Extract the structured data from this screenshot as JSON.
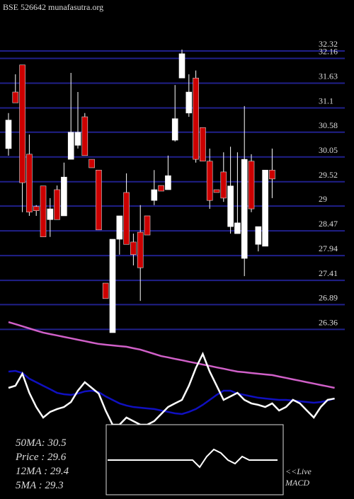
{
  "chart_data": {
    "type": "candlestick",
    "title": "BSE 526642 munafasutra.org",
    "ylim": [
      26.29,
      33.41
    ],
    "yticks": [
      32.32,
      32.16,
      31.63,
      31.1,
      30.58,
      30.05,
      29.52,
      29,
      28.47,
      27.94,
      27.41,
      26.89,
      26.36
    ],
    "grid_color": "#20208a",
    "up_color": "#ffffff",
    "down_color": "#cc0000",
    "open": [
      30.23,
      31.44,
      32.02,
      30.11,
      28.99,
      29.43,
      28.71,
      29.35,
      28.79,
      30.0,
      30.3,
      30.91,
      30.0,
      29.77,
      27.35,
      26.29,
      28.29,
      29.29,
      28.23,
      28.44,
      28.79,
      29.12,
      29.44,
      29.35,
      30.41,
      31.74,
      30.99,
      31.74,
      30.68,
      29.96,
      29.35,
      29.73,
      28.56,
      28.41,
      27.88,
      29.96,
      28.18,
      28.14,
      29.77
    ],
    "high": [
      30.99,
      31.82,
      32.02,
      30.53,
      29.02,
      29.43,
      29.17,
      29.44,
      29.93,
      31.85,
      31.44,
      30.99,
      30.0,
      29.77,
      27.35,
      28.29,
      28.79,
      29.7,
      28.41,
      29.02,
      28.79,
      29.77,
      29.44,
      30.08,
      31.59,
      32.35,
      31.82,
      31.9,
      30.68,
      30.23,
      29.35,
      30.15,
      30.27,
      30.15,
      31.14,
      30.11,
      28.56,
      29.77,
      30.23
    ],
    "low": [
      30.08,
      31.21,
      28.87,
      28.79,
      28.79,
      28.34,
      28.34,
      28.71,
      28.79,
      30.0,
      30.23,
      30.08,
      29.82,
      28.49,
      27.02,
      26.29,
      27.96,
      28.18,
      27.73,
      26.97,
      28.38,
      29.02,
      29.32,
      29.35,
      30.38,
      31.74,
      30.91,
      29.93,
      29.96,
      28.94,
      29.29,
      29.09,
      28.41,
      28.41,
      27.5,
      28.87,
      28.03,
      28.14,
      29.17
    ],
    "close": [
      30.84,
      31.21,
      29.5,
      28.87,
      28.9,
      28.34,
      28.94,
      28.71,
      29.62,
      30.58,
      30.58,
      30.08,
      29.82,
      28.49,
      27.02,
      28.29,
      28.79,
      28.18,
      27.96,
      27.68,
      28.38,
      29.35,
      29.32,
      29.65,
      30.87,
      32.26,
      31.44,
      30.0,
      29.96,
      29.12,
      29.29,
      29.17,
      29.43,
      28.64,
      30.0,
      28.94,
      28.56,
      29.77,
      29.58
    ],
    "indicators": {
      "ylim": [
        0,
        100
      ],
      "series": [
        {
          "color": "#d060c8",
          "values": [
            90.6,
            88.8,
            86.9,
            85,
            83.1,
            81.3,
            80,
            78.8,
            77.5,
            76.3,
            75,
            73.8,
            72.5,
            71.3,
            70.6,
            70,
            69.4,
            68.8,
            67.5,
            66.3,
            64.4,
            62.5,
            60.6,
            59.4,
            58.1,
            56.9,
            55.6,
            54.4,
            53.1,
            51.9,
            50.6,
            49.4,
            48.1,
            46.9,
            46.3,
            45.6,
            45,
            44.4,
            43.8,
            42.5,
            41.3,
            40,
            38.8,
            37.5,
            36.3,
            35,
            33.8,
            32.5
          ]
        },
        {
          "color": "#1010c0",
          "values": [
            46.9,
            47.5,
            45.6,
            40.6,
            37.5,
            34.4,
            31.3,
            28.1,
            26.9,
            26.3,
            27.5,
            29.4,
            30,
            28.8,
            25,
            21.9,
            18.8,
            16.9,
            15.6,
            15,
            14.4,
            13.8,
            12.5,
            11.3,
            10,
            9.4,
            11.3,
            13.8,
            17.5,
            21.9,
            26.3,
            30,
            30,
            27.5,
            26.3,
            25,
            23.8,
            23.1,
            22.5,
            21.9,
            21.9,
            21.3,
            20.6,
            20,
            19.4,
            20,
            21.3,
            23.1
          ]
        },
        {
          "color": "#ffffff",
          "values": [
            32.5,
            34.4,
            45,
            28.1,
            15.6,
            6.3,
            11.3,
            13.8,
            15.6,
            20,
            30,
            37.5,
            32.5,
            27.5,
            12.5,
            0,
            0,
            6.3,
            3.1,
            0,
            0,
            3.1,
            9.4,
            15.6,
            18.8,
            21.9,
            34.4,
            50,
            62.5,
            46.9,
            34.4,
            21.9,
            25,
            28.1,
            21.9,
            18.8,
            17.5,
            15.6,
            18.8,
            12.5,
            15.6,
            21.9,
            18.8,
            12.5,
            6.3,
            15.6,
            21.9,
            23.1
          ]
        }
      ]
    },
    "readouts": [
      "50MA: 30.5",
      "Price  : 29.6",
      "12MA : 29.4",
      "5MA : 29.3"
    ],
    "macd": {
      "ylim": [
        -1,
        1
      ],
      "color": "#ffffff",
      "values": [
        0,
        0,
        0,
        0,
        0,
        0,
        0,
        0,
        0,
        0,
        0,
        0,
        0,
        -0.2,
        0.1,
        0.3,
        0.2,
        0,
        -0.1,
        0.1,
        0,
        0,
        0,
        0,
        0
      ],
      "label_lines": [
        "<<Live",
        "MACD"
      ]
    }
  }
}
